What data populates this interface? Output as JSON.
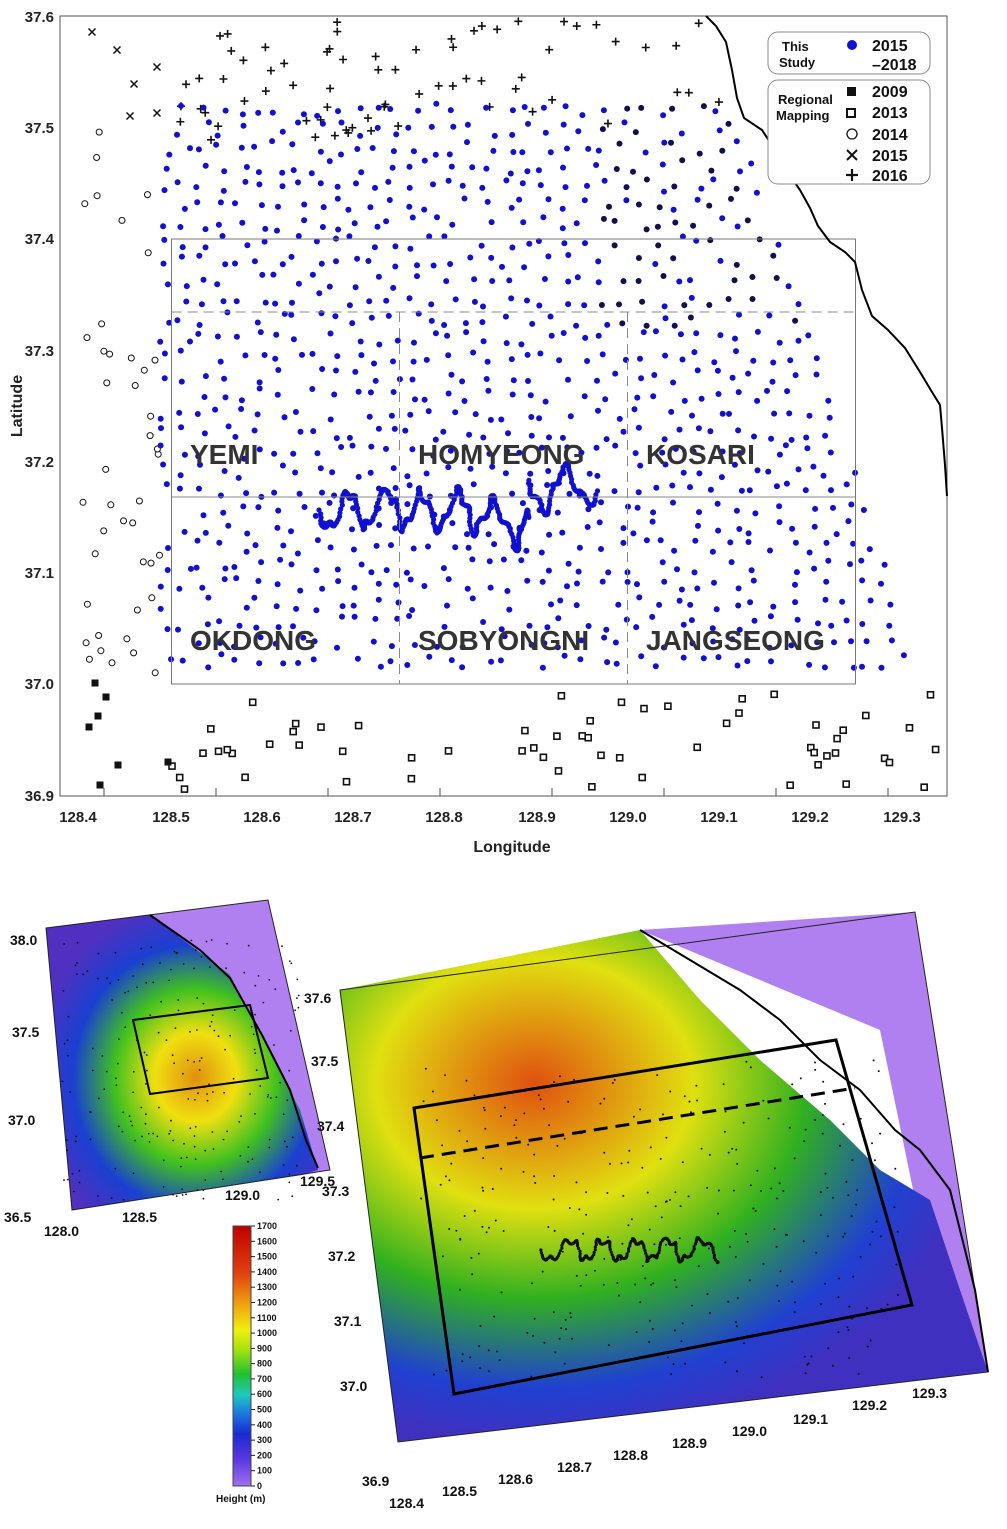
{
  "station_map": {
    "x_axis_label": "Longitude",
    "y_axis_label": "Latitude",
    "x_ticks": [
      "128.4",
      "128.5",
      "128.6",
      "128.7",
      "128.8",
      "128.9",
      "129.0",
      "129.1",
      "129.2",
      "129.3"
    ],
    "y_ticks": [
      "37.6",
      "37.5",
      "37.4",
      "37.3",
      "37.2",
      "37.1",
      "37.0",
      "36.9"
    ],
    "regions": [
      "YEMI",
      "HOMYEONG",
      "KOSARI",
      "OKDONG",
      "SOBYONGNI",
      "JANGSEONG"
    ],
    "legend": {
      "this_study_label": [
        "This",
        "Study"
      ],
      "this_study_years": [
        "2015",
        "–2018"
      ],
      "regional_label": [
        "Regional",
        "Mapping"
      ],
      "entries": [
        {
          "symbol": "filled-square",
          "year": "2009"
        },
        {
          "symbol": "open-square",
          "year": "2013"
        },
        {
          "symbol": "open-circle",
          "year": "2014"
        },
        {
          "symbol": "cross-x",
          "year": "2015"
        },
        {
          "symbol": "plus",
          "year": "2016"
        }
      ]
    },
    "colors": {
      "this_study": "#1010d0",
      "regional": "#111111",
      "coast": "#000000"
    }
  },
  "dem_small": {
    "x_ticks": [
      "128.0",
      "128.5",
      "129.0",
      "129.5"
    ],
    "y_ticks": [
      "38.0",
      "37.5",
      "37.0",
      "36.5"
    ]
  },
  "dem_large": {
    "x_ticks": [
      "128.4",
      "128.5",
      "128.6",
      "128.7",
      "128.8",
      "128.9",
      "129.0",
      "129.1",
      "129.2",
      "129.3"
    ],
    "y_ticks": [
      "37.6",
      "37.5",
      "37.4",
      "37.3",
      "37.2",
      "37.1",
      "37.0",
      "36.9"
    ]
  },
  "colorbar": {
    "title": "Height (m)",
    "ticks": [
      "1700",
      "1600",
      "1500",
      "1400",
      "1300",
      "1200",
      "1100",
      "1000",
      "900",
      "800",
      "700",
      "600",
      "500",
      "400",
      "300",
      "200",
      "100",
      "0"
    ],
    "colors": [
      "#8a5cf0",
      "#3a2cd8",
      "#1a6de0",
      "#1fc0c0",
      "#25c030",
      "#9adc10",
      "#f0f010",
      "#f0a010",
      "#e04010",
      "#c80000"
    ]
  }
}
